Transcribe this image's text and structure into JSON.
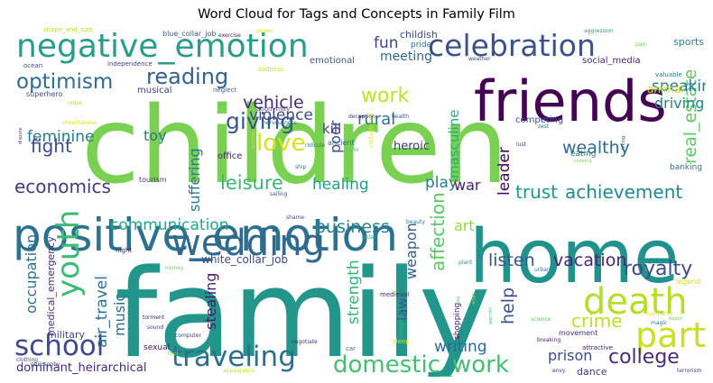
{
  "chart_data": {
    "type": "wordcloud",
    "title": "Word Cloud for Tags and Concepts in Family Film",
    "words": [
      {
        "text": "family",
        "weight": 1.0,
        "color": "#22968b"
      },
      {
        "text": "children",
        "weight": 0.97,
        "color": "#7ad151"
      },
      {
        "text": "home",
        "weight": 0.65,
        "color": "#21918c"
      },
      {
        "text": "positive_emotion",
        "weight": 0.45,
        "color": "#2c728e"
      },
      {
        "text": "friends",
        "weight": 0.42,
        "color": "#440154"
      },
      {
        "text": "wedding",
        "weight": 0.33,
        "color": "#31688e"
      },
      {
        "text": "negative_emotion",
        "weight": 0.3,
        "color": "#2a9d8a"
      },
      {
        "text": "celebration",
        "weight": 0.29,
        "color": "#3b528b"
      },
      {
        "text": "death",
        "weight": 0.28,
        "color": "#b5de2b"
      },
      {
        "text": "party",
        "weight": 0.26,
        "color": "#c8e020"
      },
      {
        "text": "youth",
        "weight": 0.24,
        "color": "#3bbb75"
      },
      {
        "text": "traveling",
        "weight": 0.22,
        "color": "#2e6f8e"
      },
      {
        "text": "school",
        "weight": 0.21,
        "color": "#3e4a89"
      },
      {
        "text": "domestic_work",
        "weight": 0.18,
        "color": "#43bf71"
      },
      {
        "text": "love",
        "weight": 0.17,
        "color": "#d8e219"
      },
      {
        "text": "giving",
        "weight": 0.16,
        "color": "#365c8d"
      },
      {
        "text": "reading",
        "weight": 0.15,
        "color": "#355f8d"
      },
      {
        "text": "optimism",
        "weight": 0.14,
        "color": "#2f6c8e"
      },
      {
        "text": "work",
        "weight": 0.14,
        "color": "#c0df25"
      },
      {
        "text": "royalty",
        "weight": 0.14,
        "color": "#3d4d8a"
      },
      {
        "text": "college",
        "weight": 0.14,
        "color": "#472d7b"
      },
      {
        "text": "trust",
        "weight": 0.14,
        "color": "#1e9c89"
      },
      {
        "text": "achievement",
        "weight": 0.14,
        "color": "#23898e"
      },
      {
        "text": "leisure",
        "weight": 0.13,
        "color": "#38b977"
      },
      {
        "text": "economics",
        "weight": 0.13,
        "color": "#453781"
      },
      {
        "text": "fight",
        "weight": 0.13,
        "color": "#3e4c8a"
      },
      {
        "text": "affection",
        "weight": 0.13,
        "color": "#5cc863"
      },
      {
        "text": "crime",
        "weight": 0.12,
        "color": "#bddf26"
      },
      {
        "text": "vehicle",
        "weight": 0.12,
        "color": "#482878"
      },
      {
        "text": "wealthy",
        "weight": 0.12,
        "color": "#2f6b8e"
      },
      {
        "text": "real_estate",
        "weight": 0.12,
        "color": "#5ec962"
      },
      {
        "text": "listen",
        "weight": 0.12,
        "color": "#3a548c"
      },
      {
        "text": "vacation",
        "weight": 0.12,
        "color": "#482475"
      },
      {
        "text": "business",
        "weight": 0.12,
        "color": "#26828e"
      },
      {
        "text": "help",
        "weight": 0.11,
        "color": "#3b528b"
      },
      {
        "text": "rural",
        "weight": 0.11,
        "color": "#2d718e"
      },
      {
        "text": "speaking",
        "weight": 0.11,
        "color": "#2a768e"
      },
      {
        "text": "air_travel",
        "weight": 0.11,
        "color": "#2c728e"
      },
      {
        "text": "communication",
        "weight": 0.11,
        "color": "#22a785"
      },
      {
        "text": "writing",
        "weight": 0.1,
        "color": "#31688e"
      },
      {
        "text": "strength",
        "weight": 0.1,
        "color": "#35b779"
      },
      {
        "text": "healing",
        "weight": 0.1,
        "color": "#1f9e89"
      },
      {
        "text": "violence",
        "weight": 0.1,
        "color": "#3e4989"
      },
      {
        "text": "fun",
        "weight": 0.1,
        "color": "#414487"
      },
      {
        "text": "feminine",
        "weight": 0.1,
        "color": "#2a788e"
      },
      {
        "text": "play",
        "weight": 0.1,
        "color": "#287d8e"
      },
      {
        "text": "leader",
        "weight": 0.1,
        "color": "#450559"
      },
      {
        "text": "driving",
        "weight": 0.1,
        "color": "#24868e"
      },
      {
        "text": "suffering",
        "weight": 0.09,
        "color": "#2a788e"
      },
      {
        "text": "poor",
        "weight": 0.09,
        "color": "#3e4a89"
      },
      {
        "text": "stealing",
        "weight": 0.09,
        "color": "#481b6d"
      },
      {
        "text": "music",
        "weight": 0.09,
        "color": "#2d708e"
      },
      {
        "text": "occupation",
        "weight": 0.09,
        "color": "#2c728e"
      },
      {
        "text": "weapon",
        "weight": 0.09,
        "color": "#38598c"
      },
      {
        "text": "prison",
        "weight": 0.09,
        "color": "#3e4c8a"
      },
      {
        "text": "war",
        "weight": 0.09,
        "color": "#481c6e"
      },
      {
        "text": "art",
        "weight": 0.09,
        "color": "#8fd744"
      },
      {
        "text": "toy",
        "weight": 0.09,
        "color": "#2b748e"
      },
      {
        "text": "masculine",
        "weight": 0.08,
        "color": "#25ab82"
      },
      {
        "text": "law",
        "weight": 0.08,
        "color": "#39568c"
      },
      {
        "text": "kill",
        "weight": 0.08,
        "color": "#404688"
      },
      {
        "text": "meeting",
        "weight": 0.07,
        "color": "#306a8e"
      },
      {
        "text": "dominant_heirarchical",
        "weight": 0.07,
        "color": "#482878"
      },
      {
        "text": "medical_emergency",
        "weight": 0.06,
        "color": "#472c7a"
      },
      {
        "text": "animal",
        "weight": 0.06,
        "color": "#d0e11c"
      },
      {
        "text": "heroic",
        "weight": 0.06,
        "color": "#463480"
      },
      {
        "text": "dance",
        "weight": 0.05,
        "color": "#46337f"
      },
      {
        "text": "emotional",
        "weight": 0.05,
        "color": "#38598c"
      },
      {
        "text": "white_collar_job",
        "weight": 0.05,
        "color": "#3e4989"
      },
      {
        "text": "office",
        "weight": 0.05,
        "color": "#481f70"
      },
      {
        "text": "childish",
        "weight": 0.05,
        "color": "#3e4a89"
      },
      {
        "text": "sports",
        "weight": 0.05,
        "color": "#25838e"
      },
      {
        "text": "military",
        "weight": 0.05,
        "color": "#3f4788"
      },
      {
        "text": "musical",
        "weight": 0.05,
        "color": "#424086"
      },
      {
        "text": "social_media",
        "weight": 0.05,
        "color": "#482677"
      },
      {
        "text": "competing",
        "weight": 0.05,
        "color": "#3b528b"
      },
      {
        "text": "movement",
        "weight": 0.04,
        "color": "#472a7a"
      },
      {
        "text": "banking",
        "weight": 0.04,
        "color": "#2e6e8e"
      },
      {
        "text": "eating",
        "weight": 0.04,
        "color": "#2a788e"
      },
      {
        "text": "pride",
        "weight": 0.04,
        "color": "#2b748e"
      },
      {
        "text": "shopping",
        "weight": 0.04,
        "color": "#481467"
      },
      {
        "text": "sexual",
        "weight": 0.04,
        "color": "#471063"
      },
      {
        "text": "blue_collar_job",
        "weight": 0.04,
        "color": "#3b528b"
      },
      {
        "text": "tourism",
        "weight": 0.04,
        "color": "#443b84"
      },
      {
        "text": "superhero",
        "weight": 0.04,
        "color": "#3e4c8a"
      },
      {
        "text": "independence",
        "weight": 0.04,
        "color": "#443983"
      },
      {
        "text": "ancient",
        "weight": 0.04,
        "color": "#2f6b8e"
      },
      {
        "text": "medieval",
        "weight": 0.04,
        "color": "#482475"
      },
      {
        "text": "deception",
        "weight": 0.035,
        "color": "#46307e"
      },
      {
        "text": "anonymity",
        "weight": 0.035,
        "color": "#424186"
      },
      {
        "text": "health",
        "weight": 0.035,
        "color": "#3a548c"
      },
      {
        "text": "valuable",
        "weight": 0.035,
        "color": "#2c738e"
      },
      {
        "text": "attractive",
        "weight": 0.035,
        "color": "#482374"
      },
      {
        "text": "terrorism",
        "weight": 0.035,
        "color": "#414287"
      },
      {
        "text": "neglect",
        "weight": 0.035,
        "color": "#355e8d"
      },
      {
        "text": "sadness",
        "weight": 0.035,
        "color": "#cde11d"
      },
      {
        "text": "legend",
        "weight": 0.035,
        "color": "#d5e21a"
      },
      {
        "text": "shape_and_size",
        "weight": 0.035,
        "color": "#bddf26"
      },
      {
        "text": "night",
        "weight": 0.035,
        "color": "#481769"
      },
      {
        "text": "ocean",
        "weight": 0.035,
        "color": "#3f4889"
      },
      {
        "text": "hate",
        "weight": 0.035,
        "color": "#5ac864"
      },
      {
        "text": "cheerfulness",
        "weight": 0.03,
        "color": "#d2e21b"
      },
      {
        "text": "sound",
        "weight": 0.03,
        "color": "#424086"
      },
      {
        "text": "science",
        "weight": 0.03,
        "color": "#5ec962"
      },
      {
        "text": "sympathy",
        "weight": 0.03,
        "color": "#e5e419"
      },
      {
        "text": "ridicule",
        "weight": 0.03,
        "color": "#2b748e"
      },
      {
        "text": "order",
        "weight": 0.03,
        "color": "#29af7f"
      },
      {
        "text": "aggression",
        "weight": 0.03,
        "color": "#1f9f88"
      },
      {
        "text": "weather",
        "weight": 0.03,
        "color": "#404588"
      },
      {
        "text": "power",
        "weight": 0.03,
        "color": "#dae319"
      },
      {
        "text": "magic",
        "weight": 0.03,
        "color": "#277f8e"
      },
      {
        "text": "breaking",
        "weight": 0.03,
        "color": "#481668"
      },
      {
        "text": "sleep",
        "weight": 0.03,
        "color": "#e2e418"
      },
      {
        "text": "money",
        "weight": 0.03,
        "color": "#6ccd5a"
      },
      {
        "text": "car",
        "weight": 0.03,
        "color": "#2d718e"
      },
      {
        "text": "beauty",
        "weight": 0.03,
        "color": "#287c8e"
      },
      {
        "text": "torment",
        "weight": 0.03,
        "color": "#48186a"
      },
      {
        "text": "plant",
        "weight": 0.03,
        "color": "#21918c"
      },
      {
        "text": "philosophy",
        "weight": 0.03,
        "color": "#3f4788"
      },
      {
        "text": "urban",
        "weight": 0.03,
        "color": "#2a788e"
      },
      {
        "text": "dispute",
        "weight": 0.03,
        "color": "#433e85"
      },
      {
        "text": "computer",
        "weight": 0.03,
        "color": "#453882"
      },
      {
        "text": "negotiate",
        "weight": 0.03,
        "color": "#46327e"
      },
      {
        "text": "tool",
        "weight": 0.03,
        "color": "#7fd34e"
      },
      {
        "text": "exercise",
        "weight": 0.03,
        "color": "#482071"
      },
      {
        "text": "pain",
        "weight": 0.03,
        "color": "#6ece58"
      },
      {
        "text": "appearance",
        "weight": 0.03,
        "color": "#c2df23"
      },
      {
        "text": "envy",
        "weight": 0.03,
        "color": "#472c7a"
      },
      {
        "text": "clothing",
        "weight": 0.03,
        "color": "#3e4a89"
      },
      {
        "text": "nervousness",
        "weight": 0.03,
        "color": "#306a8e"
      },
      {
        "text": "contentment",
        "weight": 0.03,
        "color": "#d8e219"
      },
      {
        "text": "messaging",
        "weight": 0.03,
        "color": "#35b779"
      },
      {
        "text": "zest",
        "weight": 0.03,
        "color": "#2c728e"
      },
      {
        "text": "noise",
        "weight": 0.03,
        "color": "#addc30"
      },
      {
        "text": "lust",
        "weight": 0.03,
        "color": "#3f4889"
      },
      {
        "text": "sailing",
        "weight": 0.03,
        "color": "#3b528b"
      },
      {
        "text": "shame",
        "weight": 0.03,
        "color": "#404588"
      },
      {
        "text": "ship",
        "weight": 0.03,
        "color": "#2b748e"
      },
      {
        "text": "hiking",
        "weight": 0.03,
        "color": "#3f4889"
      },
      {
        "text": "cooking",
        "weight": 0.03,
        "color": "#84d44b"
      },
      {
        "text": "hunting",
        "weight": 0.03,
        "color": "#d5e21a"
      },
      {
        "text": "warmth",
        "weight": 0.03,
        "color": "#44bf70"
      },
      {
        "text": "anger",
        "weight": 0.03,
        "color": "#a2da37"
      },
      {
        "text": "joy",
        "weight": 0.03,
        "color": "#48c16e"
      },
      {
        "text": "beach",
        "weight": 0.03,
        "color": "#6ece58"
      }
    ]
  }
}
